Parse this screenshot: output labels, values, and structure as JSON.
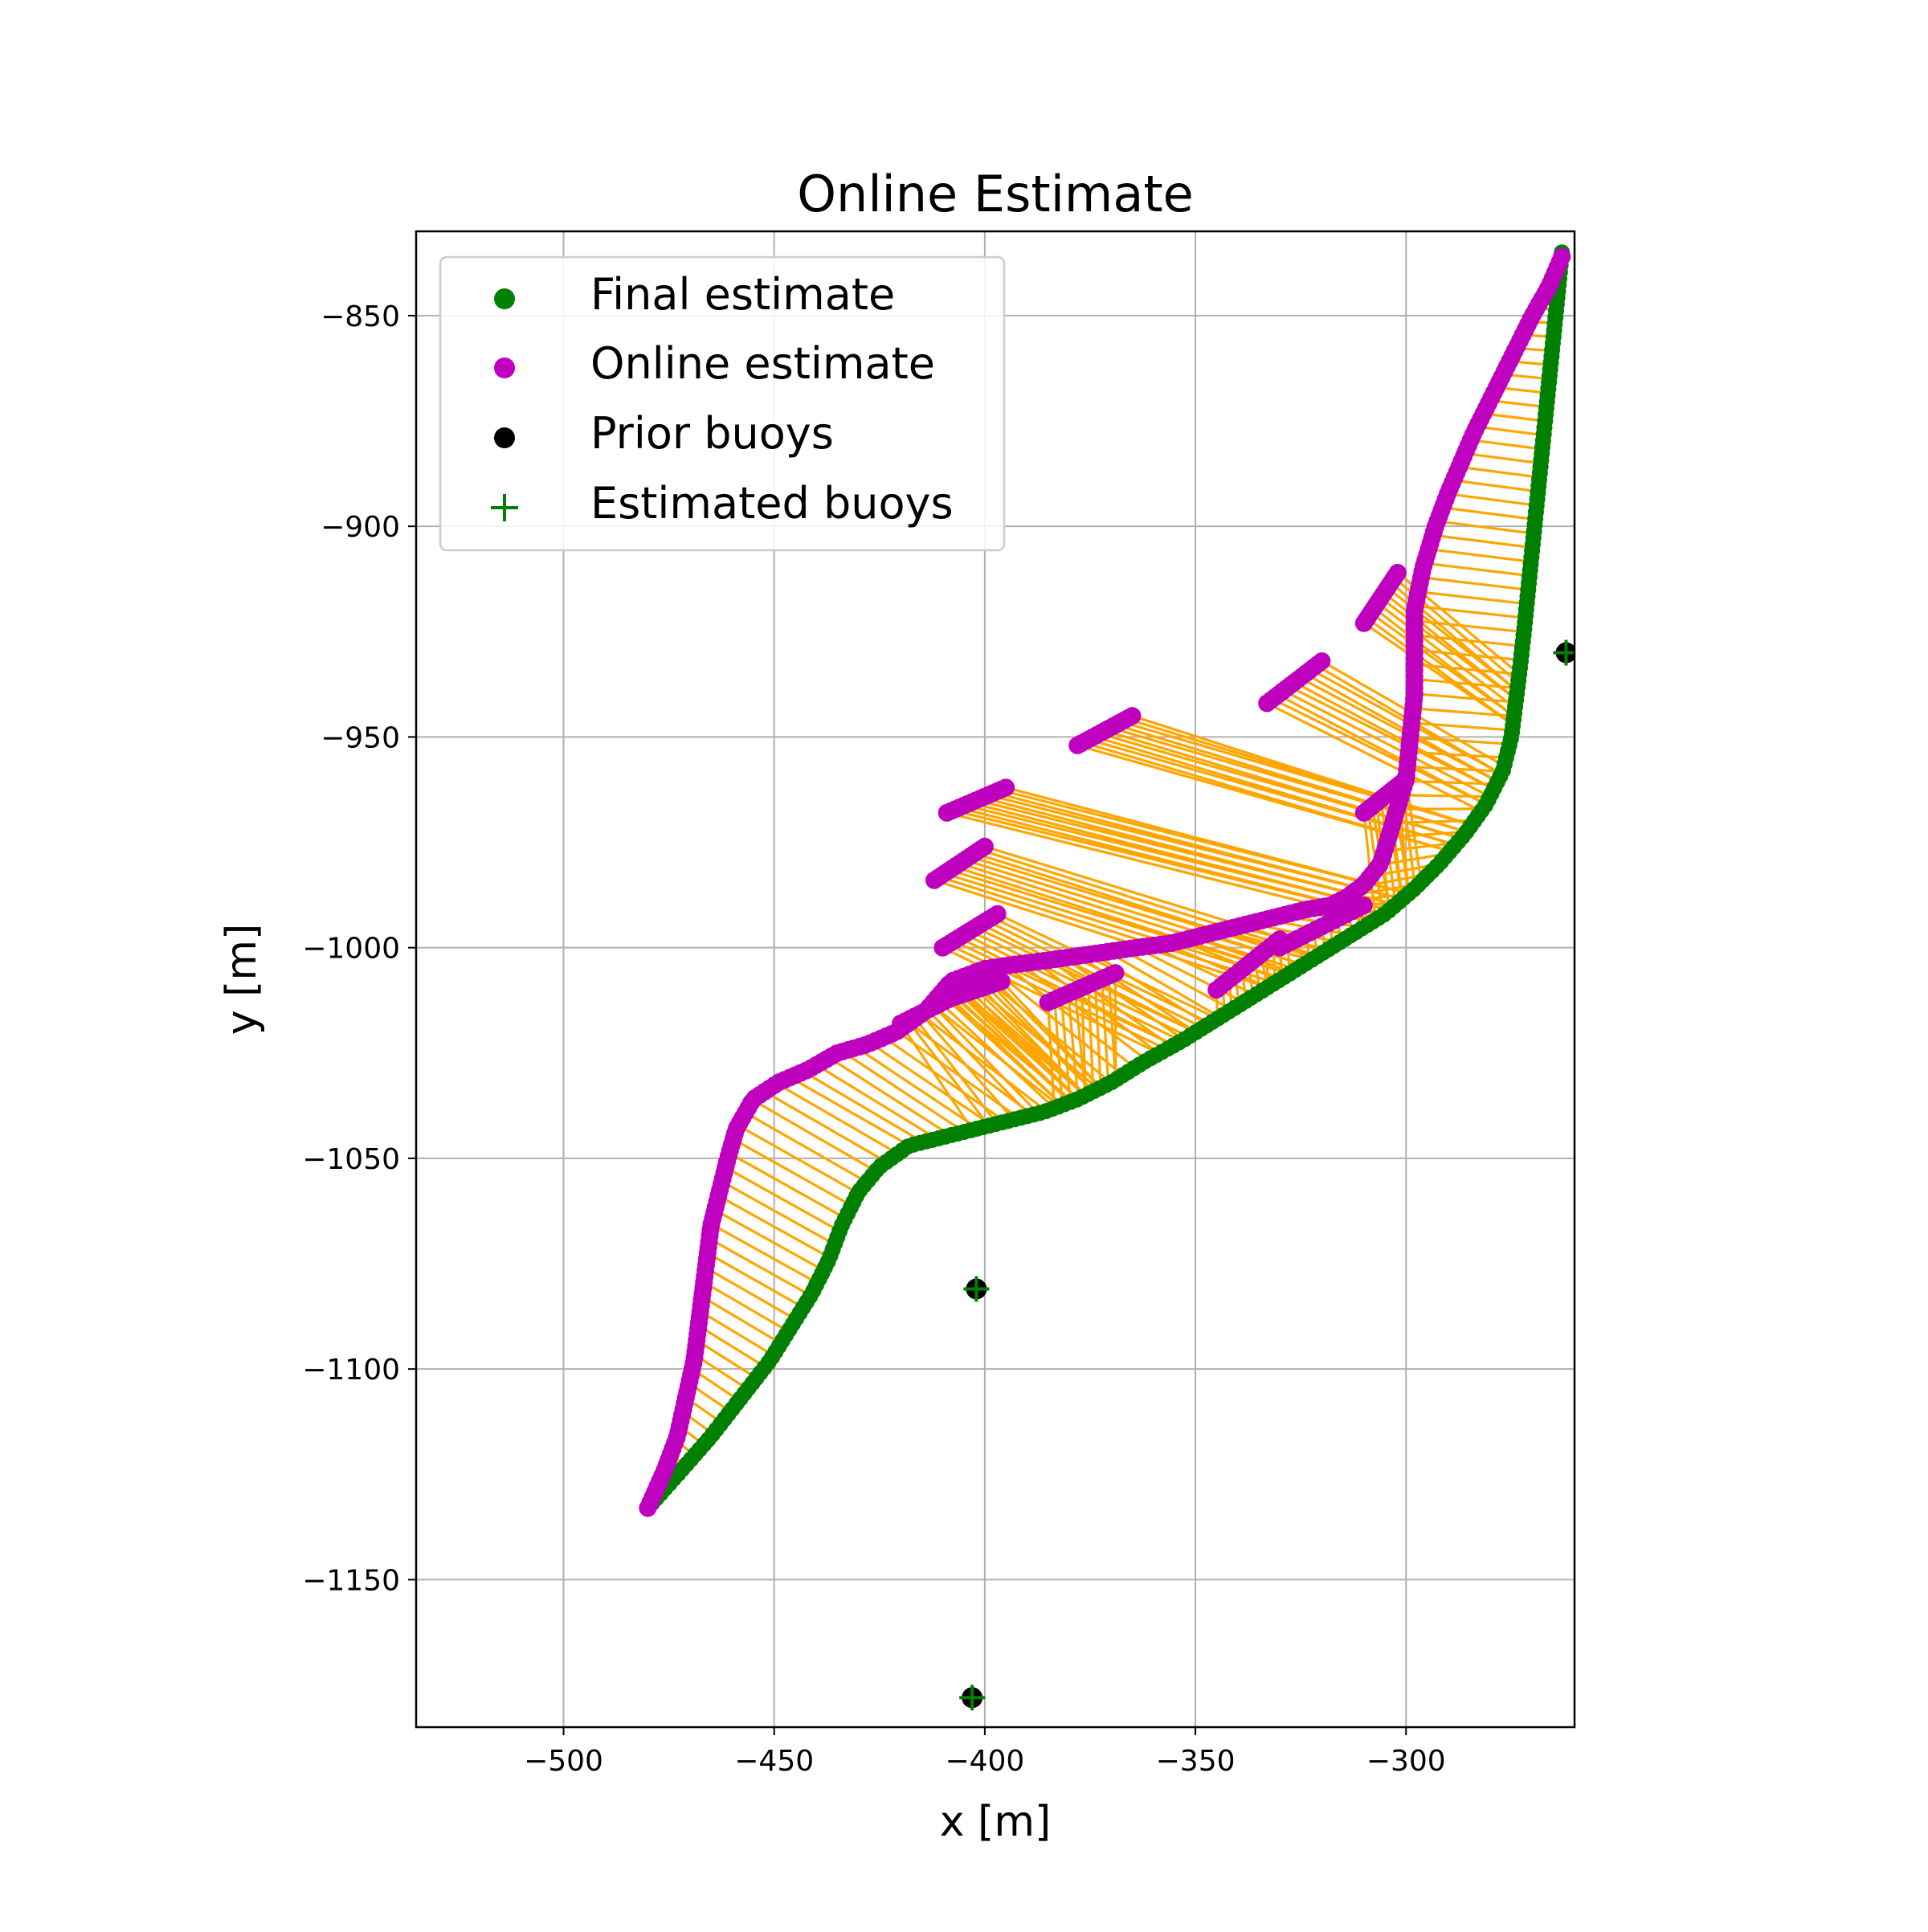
{
  "chart_data": {
    "type": "scatter",
    "title": "Online Estimate",
    "xlabel": "x [m]",
    "ylabel": "y [m]",
    "xlim": [
      -535,
      -260
    ],
    "ylim": [
      -1185,
      -830
    ],
    "x_ticks": [
      -500,
      -450,
      -400,
      -350,
      -300
    ],
    "y_ticks": [
      -850,
      -900,
      -950,
      -1000,
      -1050,
      -1100,
      -1150
    ],
    "x_tick_labels": [
      "−500",
      "−450",
      "−400",
      "−350",
      "−300"
    ],
    "y_tick_labels": [
      "−850",
      "−900",
      "−950",
      "−1000",
      "−1050",
      "−1100",
      "−1150"
    ],
    "grid": true,
    "legend_position": "top-left",
    "legend": [
      {
        "label": "Final estimate",
        "marker": "circle",
        "color": "#008000"
      },
      {
        "label": "Online estimate",
        "marker": "circle",
        "color": "#bf00bf"
      },
      {
        "label": "Prior buoys",
        "marker": "circle",
        "color": "#000000"
      },
      {
        "label": "Estimated buoys",
        "marker": "plus",
        "color": "#008000"
      }
    ],
    "colors": {
      "final": "#008000",
      "online": "#bf00bf",
      "connector": "#ffa500",
      "prior": "#000000",
      "estimated": "#008000"
    },
    "final_path": [
      [
        -480,
        -1133
      ],
      [
        -472,
        -1124
      ],
      [
        -465,
        -1116
      ],
      [
        -458,
        -1107
      ],
      [
        -451,
        -1098
      ],
      [
        -446,
        -1090
      ],
      [
        -441,
        -1082
      ],
      [
        -437,
        -1074
      ],
      [
        -434,
        -1066
      ],
      [
        -430,
        -1058
      ],
      [
        -425,
        -1052
      ],
      [
        -418,
        -1047
      ],
      [
        -410,
        -1045
      ],
      [
        -402,
        -1043
      ],
      [
        -394,
        -1041
      ],
      [
        -386,
        -1039
      ],
      [
        -378,
        -1036
      ],
      [
        -370,
        -1032
      ],
      [
        -362,
        -1027
      ],
      [
        -353,
        -1022
      ],
      [
        -345,
        -1017
      ],
      [
        -337,
        -1012
      ],
      [
        -329,
        -1007
      ],
      [
        -321,
        -1002
      ],
      [
        -313,
        -997
      ],
      [
        -305,
        -992
      ],
      [
        -298,
        -986
      ],
      [
        -292,
        -980
      ],
      [
        -286,
        -973
      ],
      [
        -281,
        -966
      ],
      [
        -277,
        -958
      ],
      [
        -275,
        -950
      ],
      [
        -274,
        -942
      ],
      [
        -273,
        -934
      ],
      [
        -272,
        -925
      ],
      [
        -271,
        -915
      ],
      [
        -270,
        -905
      ],
      [
        -269,
        -895
      ],
      [
        -268,
        -885
      ],
      [
        -267,
        -875
      ],
      [
        -266,
        -865
      ],
      [
        -265,
        -855
      ],
      [
        -264,
        -845
      ],
      [
        -263,
        -835
      ]
    ],
    "online_path": [
      [
        -480,
        -1133
      ],
      [
        -476,
        -1124
      ],
      [
        -473,
        -1116
      ],
      [
        -471,
        -1107
      ],
      [
        -469,
        -1098
      ],
      [
        -468,
        -1090
      ],
      [
        -467,
        -1082
      ],
      [
        -466,
        -1074
      ],
      [
        -465,
        -1066
      ],
      [
        -463,
        -1058
      ],
      [
        -461,
        -1050
      ],
      [
        -459,
        -1043
      ],
      [
        -455,
        -1036
      ],
      [
        -449,
        -1032
      ],
      [
        -442,
        -1029
      ],
      [
        -435,
        -1025
      ],
      [
        -428,
        -1023
      ],
      [
        -421,
        -1020
      ],
      [
        -414,
        -1015
      ],
      [
        -408,
        -1008
      ],
      [
        -400,
        -1005
      ],
      [
        -393,
        -1004
      ],
      [
        -385,
        -1003
      ],
      [
        -378,
        -1002
      ],
      [
        -371,
        -1001
      ],
      [
        -364,
        -1000
      ],
      [
        -356,
        -999
      ],
      [
        -348,
        -997
      ],
      [
        -340,
        -995
      ],
      [
        -332,
        -993
      ],
      [
        -324,
        -991
      ],
      [
        -318,
        -990
      ],
      [
        -314,
        -988
      ],
      [
        -310,
        -985
      ],
      [
        -306,
        -980
      ],
      [
        -303,
        -970
      ],
      [
        -300,
        -960
      ],
      [
        -299,
        -950
      ],
      [
        -298,
        -940
      ],
      [
        -298,
        -930
      ],
      [
        -298,
        -920
      ],
      [
        -296,
        -910
      ],
      [
        -293,
        -900
      ],
      [
        -290,
        -892
      ],
      [
        -287,
        -885
      ],
      [
        -284,
        -878
      ],
      [
        -281,
        -872
      ],
      [
        -278,
        -866
      ],
      [
        -274,
        -858
      ],
      [
        -270,
        -850
      ],
      [
        -266,
        -843
      ],
      [
        -263,
        -836
      ]
    ],
    "online_segments": [
      [
        [
          -408,
          -1012
        ],
        [
          -396,
          -1008
        ]
      ],
      [
        [
          -420,
          -1018
        ],
        [
          -404,
          -1010
        ]
      ],
      [
        [
          -385,
          -1013
        ],
        [
          -369,
          -1006
        ]
      ],
      [
        [
          -410,
          -1000
        ],
        [
          -397,
          -992
        ]
      ],
      [
        [
          -412,
          -984
        ],
        [
          -400,
          -976
        ]
      ],
      [
        [
          -409,
          -968
        ],
        [
          -395,
          -962
        ]
      ],
      [
        [
          -378,
          -952
        ],
        [
          -365,
          -945
        ]
      ],
      [
        [
          -333,
          -942
        ],
        [
          -320,
          -932
        ]
      ],
      [
        [
          -310,
          -968
        ],
        [
          -300,
          -960
        ]
      ],
      [
        [
          -310,
          -923
        ],
        [
          -302,
          -911
        ]
      ],
      [
        [
          -345,
          -1010
        ],
        [
          -330,
          -998
        ]
      ],
      [
        [
          -330,
          -1000
        ],
        [
          -310,
          -990
        ]
      ]
    ],
    "connectors": {
      "final_t_range": [
        0.0,
        1.0
      ],
      "count": 120
    },
    "prior_buoys": [
      {
        "x": -402,
        "y": -1081
      },
      {
        "x": -403,
        "y": -1178
      },
      {
        "x": -262,
        "y": -930
      }
    ],
    "estimated_buoys": [
      {
        "x": -402,
        "y": -1081
      },
      {
        "x": -403,
        "y": -1178
      },
      {
        "x": -262,
        "y": -930
      }
    ]
  }
}
